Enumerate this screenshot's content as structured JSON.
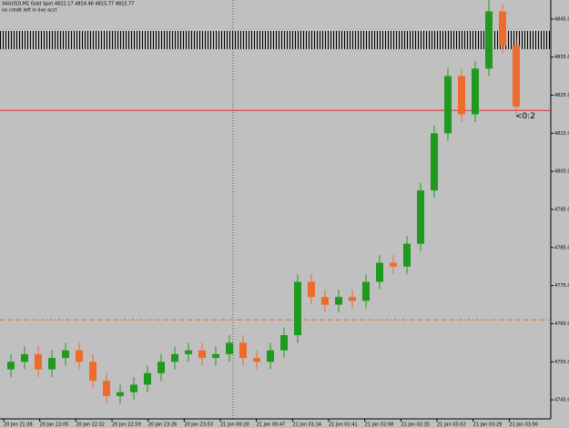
{
  "chart_data": {
    "type": "candlestick",
    "title": "XAUUSD,M1  Gold Spot  4822.17 4824.46 4815.77 4815.77",
    "subtitle": "no credit left in live acct",
    "open": [
      4753,
      4755,
      4757,
      4753,
      4756,
      4758,
      4755,
      4750,
      4746,
      4747,
      4749,
      4752,
      4755,
      4757,
      4758,
      4756,
      4757,
      4760,
      4756,
      4755,
      4758,
      4762,
      4776,
      4772,
      4770,
      4772,
      4771,
      4776,
      4781,
      4780,
      4786,
      4800,
      4815,
      4830,
      4820,
      4832,
      4847,
      4838
    ],
    "high": [
      4757,
      4759,
      4759,
      4758,
      4760,
      4760,
      4757,
      4752,
      4749,
      4751,
      4754,
      4757,
      4759,
      4760,
      4760,
      4759,
      4762,
      4762,
      4758,
      4760,
      4764,
      4778,
      4778,
      4774,
      4774,
      4774,
      4778,
      4783,
      4783,
      4788,
      4802,
      4817,
      4832,
      4832,
      4834,
      4850,
      4849,
      4840
    ],
    "low": [
      4751,
      4753,
      4751,
      4751,
      4754,
      4753,
      4748,
      4744,
      4744,
      4745,
      4747,
      4750,
      4753,
      4755,
      4754,
      4754,
      4755,
      4754,
      4753,
      4753,
      4756,
      4760,
      4770,
      4768,
      4768,
      4769,
      4769,
      4774,
      4778,
      4778,
      4784,
      4798,
      4813,
      4818,
      4818,
      4830,
      4836,
      4820
    ],
    "close": [
      4755,
      4757,
      4753,
      4756,
      4758,
      4755,
      4750,
      4746,
      4747,
      4749,
      4752,
      4755,
      4757,
      4758,
      4756,
      4757,
      4760,
      4756,
      4755,
      4758,
      4762,
      4776,
      4772,
      4770,
      4772,
      4771,
      4776,
      4781,
      4780,
      4786,
      4800,
      4815,
      4830,
      4820,
      4832,
      4847,
      4838,
      4822
    ],
    "up_color": "#1f9a1f",
    "down_color": "#f06a2a",
    "price_line": 4821,
    "level_line": 4766,
    "price_tag": "<0:2",
    "ylim": [
      4740,
      4850
    ],
    "yticks": [
      {
        "value": 4745,
        "label": "4745.00"
      },
      {
        "value": 4755,
        "label": "4755.00"
      },
      {
        "value": 4765,
        "label": "4765.00"
      },
      {
        "value": 4775,
        "label": "4775.00"
      },
      {
        "value": 4785,
        "label": "4785.00"
      },
      {
        "value": 4795,
        "label": "4795.00"
      },
      {
        "value": 4805,
        "label": "4805.00"
      },
      {
        "value": 4815,
        "label": "4815.00"
      },
      {
        "value": 4825,
        "label": "4825.00"
      },
      {
        "value": 4835,
        "label": "4835.00"
      },
      {
        "value": 4845,
        "label": "4845.00"
      }
    ],
    "time_labels": [
      "20 Jan 21:38",
      "20 Jan 22:05",
      "20 Jan 22:32",
      "20 Jan 22:59",
      "20 Jan 23:26",
      "20 Jan 23:53",
      "21 Jan 00:20",
      "21 Jan 00:47",
      "21 Jan 01:14",
      "21 Jan 01:41",
      "21 Jan 02:08",
      "21 Jan 02:35",
      "21 Jan 03:02",
      "21 Jan 03:29",
      "21 Jan 03:56"
    ]
  }
}
